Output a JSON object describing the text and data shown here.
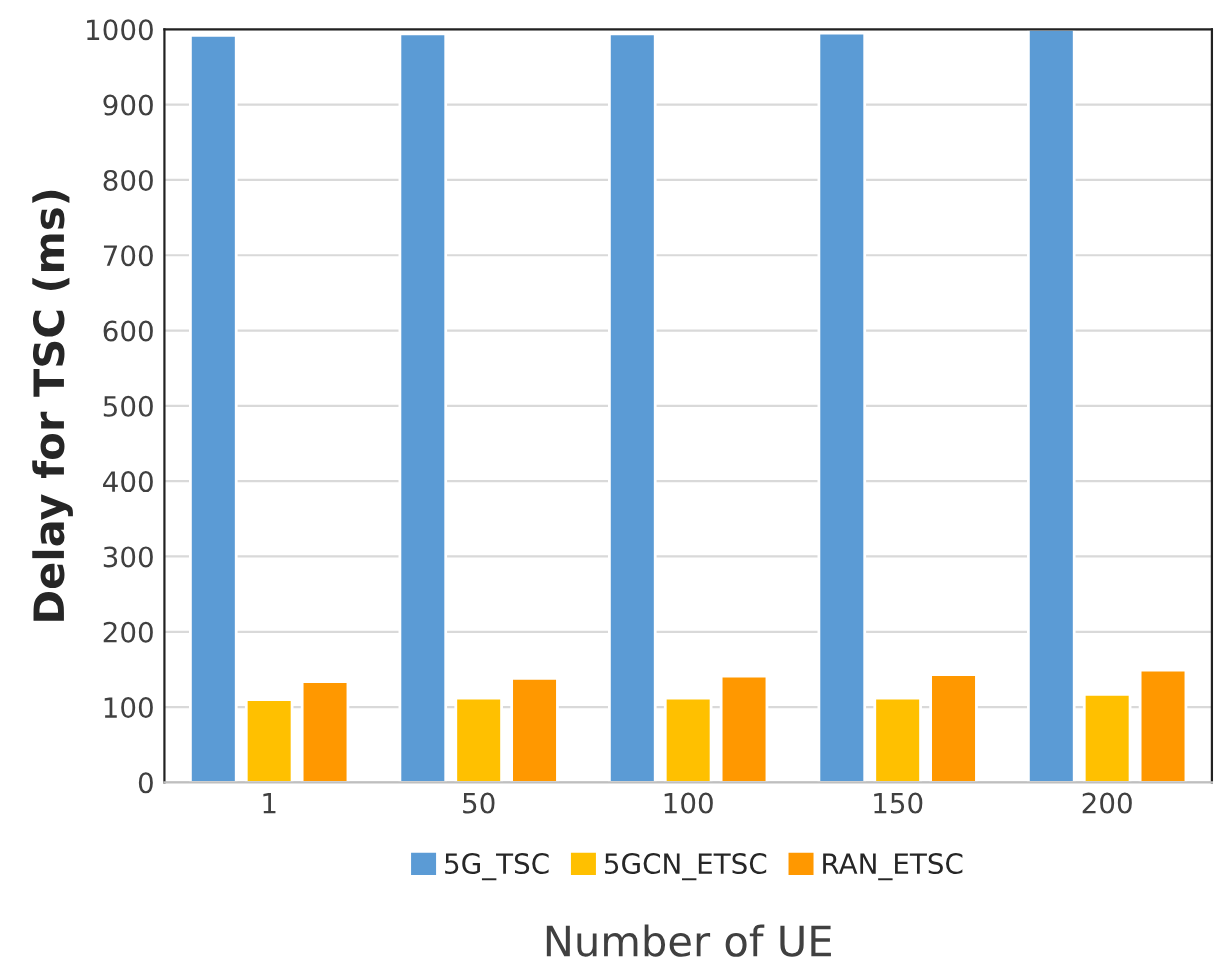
{
  "chart_data": {
    "type": "bar",
    "xlabel": "Number of UE",
    "ylabel": "Delay for TSC (ms)",
    "categories": [
      "1",
      "50",
      "100",
      "150",
      "200"
    ],
    "series": [
      {
        "name": "5G_TSC",
        "color": "#5b9bd5",
        "values": [
          992,
          994,
          994,
          995,
          1000
        ]
      },
      {
        "name": "5GCN_ETSC",
        "color": "#ffc000",
        "values": [
          110,
          112,
          112,
          112,
          117
        ]
      },
      {
        "name": "RAN_ETSC",
        "color": "#ff9800",
        "values": [
          134,
          138,
          141,
          143,
          149
        ]
      }
    ],
    "ylim": [
      0,
      1000
    ],
    "yticks": [
      0,
      100,
      200,
      300,
      400,
      500,
      600,
      700,
      800,
      900,
      1000
    ],
    "grid": "y",
    "legend": "bottom"
  }
}
